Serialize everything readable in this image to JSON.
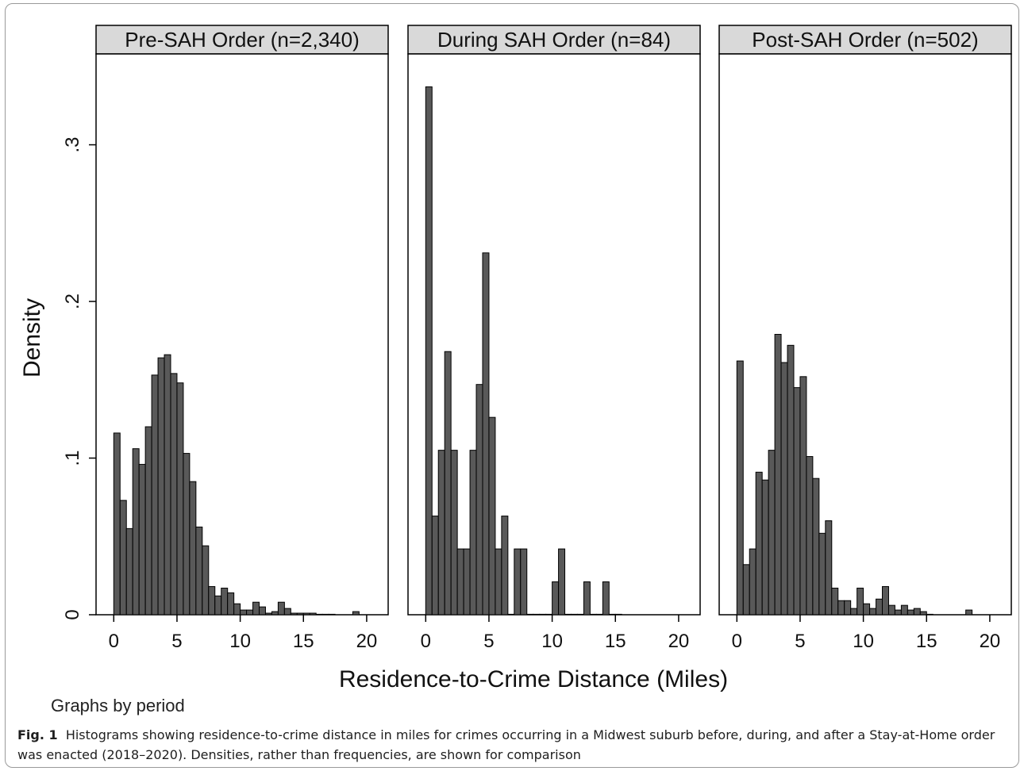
{
  "figure": {
    "caption_label": "Fig. 1",
    "caption_text": "Histograms showing residence-to-crime distance in miles for crimes occurring in a Midwest suburb before, during, and after a Stay-at-Home order was enacted (2018–2020). Densities, rather than frequencies, are shown for comparison",
    "note": "Graphs by period"
  },
  "chart_data": {
    "type": "bar",
    "xlabel": "Residence-to-Crime Distance (Miles)",
    "ylabel": "Density",
    "xlim": [
      -1.4,
      21.7
    ],
    "ylim": [
      0,
      0.358
    ],
    "x_ticks": [
      0,
      5,
      10,
      15,
      20
    ],
    "x_tick_labels": [
      "0",
      "5",
      "10",
      "15",
      "20"
    ],
    "y_ticks": [
      0,
      0.1,
      0.2,
      0.3
    ],
    "y_tick_labels": [
      "0",
      ".1",
      ".2",
      ".3"
    ],
    "grid": false,
    "bin_width": 0.5,
    "bar_color": "#595959",
    "panel_header_color": "#d9d9d9",
    "panels": [
      {
        "title": "Pre-SAH Order (n=2,340)",
        "bin_starts": [
          0,
          0.5,
          1,
          1.5,
          2,
          2.5,
          3,
          3.5,
          4,
          4.5,
          5,
          5.5,
          6,
          6.5,
          7,
          7.5,
          8,
          8.5,
          9,
          9.5,
          10,
          10.5,
          11,
          11.5,
          12,
          12.5,
          13,
          13.5,
          14,
          14.5,
          15,
          15.5,
          16,
          16.5,
          17,
          18.9
        ],
        "values": [
          0.116,
          0.073,
          0.055,
          0.106,
          0.096,
          0.12,
          0.153,
          0.164,
          0.166,
          0.154,
          0.148,
          0.103,
          0.085,
          0.056,
          0.044,
          0.018,
          0.012,
          0.017,
          0.014,
          0.007,
          0.003,
          0.003,
          0.008,
          0.005,
          0.001,
          0.002,
          0.008,
          0.004,
          0.001,
          0.001,
          0.001,
          0.001,
          0,
          0,
          0,
          0.002
        ]
      },
      {
        "title": "During SAH Order (n=84)",
        "bin_starts": [
          0,
          0.5,
          1,
          1.5,
          2,
          2.5,
          3,
          3.5,
          4,
          4.5,
          5,
          5.5,
          6,
          6.5,
          7,
          7.5,
          8,
          8.5,
          9,
          9.5,
          10,
          10.5,
          11,
          11.5,
          12,
          12.5,
          13,
          13.5,
          14,
          14.5,
          15
        ],
        "values": [
          0.337,
          0.063,
          0.105,
          0.168,
          0.105,
          0.042,
          0.042,
          0.105,
          0.147,
          0.231,
          0.126,
          0.042,
          0.063,
          0,
          0.042,
          0.042,
          0,
          0,
          0,
          0,
          0.021,
          0.042,
          0,
          0,
          0,
          0.021,
          0,
          0,
          0.021,
          0,
          0
        ]
      },
      {
        "title": "Post-SAH Order (n=502)",
        "bin_starts": [
          0,
          0.5,
          1,
          1.5,
          2,
          2.5,
          3,
          3.5,
          4,
          4.5,
          5,
          5.5,
          6,
          6.5,
          7,
          7.5,
          8,
          8.5,
          9,
          9.5,
          10,
          10.5,
          11,
          11.5,
          12,
          12.5,
          13,
          13.5,
          14,
          14.5,
          15,
          18.1
        ],
        "values": [
          0.162,
          0.032,
          0.042,
          0.091,
          0.086,
          0.105,
          0.179,
          0.161,
          0.172,
          0.145,
          0.152,
          0.101,
          0.087,
          0.052,
          0.06,
          0.017,
          0.009,
          0.009,
          0.004,
          0.017,
          0.007,
          0.004,
          0.01,
          0.018,
          0.006,
          0.003,
          0.006,
          0.003,
          0.004,
          0.002,
          0,
          0.003
        ]
      }
    ]
  }
}
